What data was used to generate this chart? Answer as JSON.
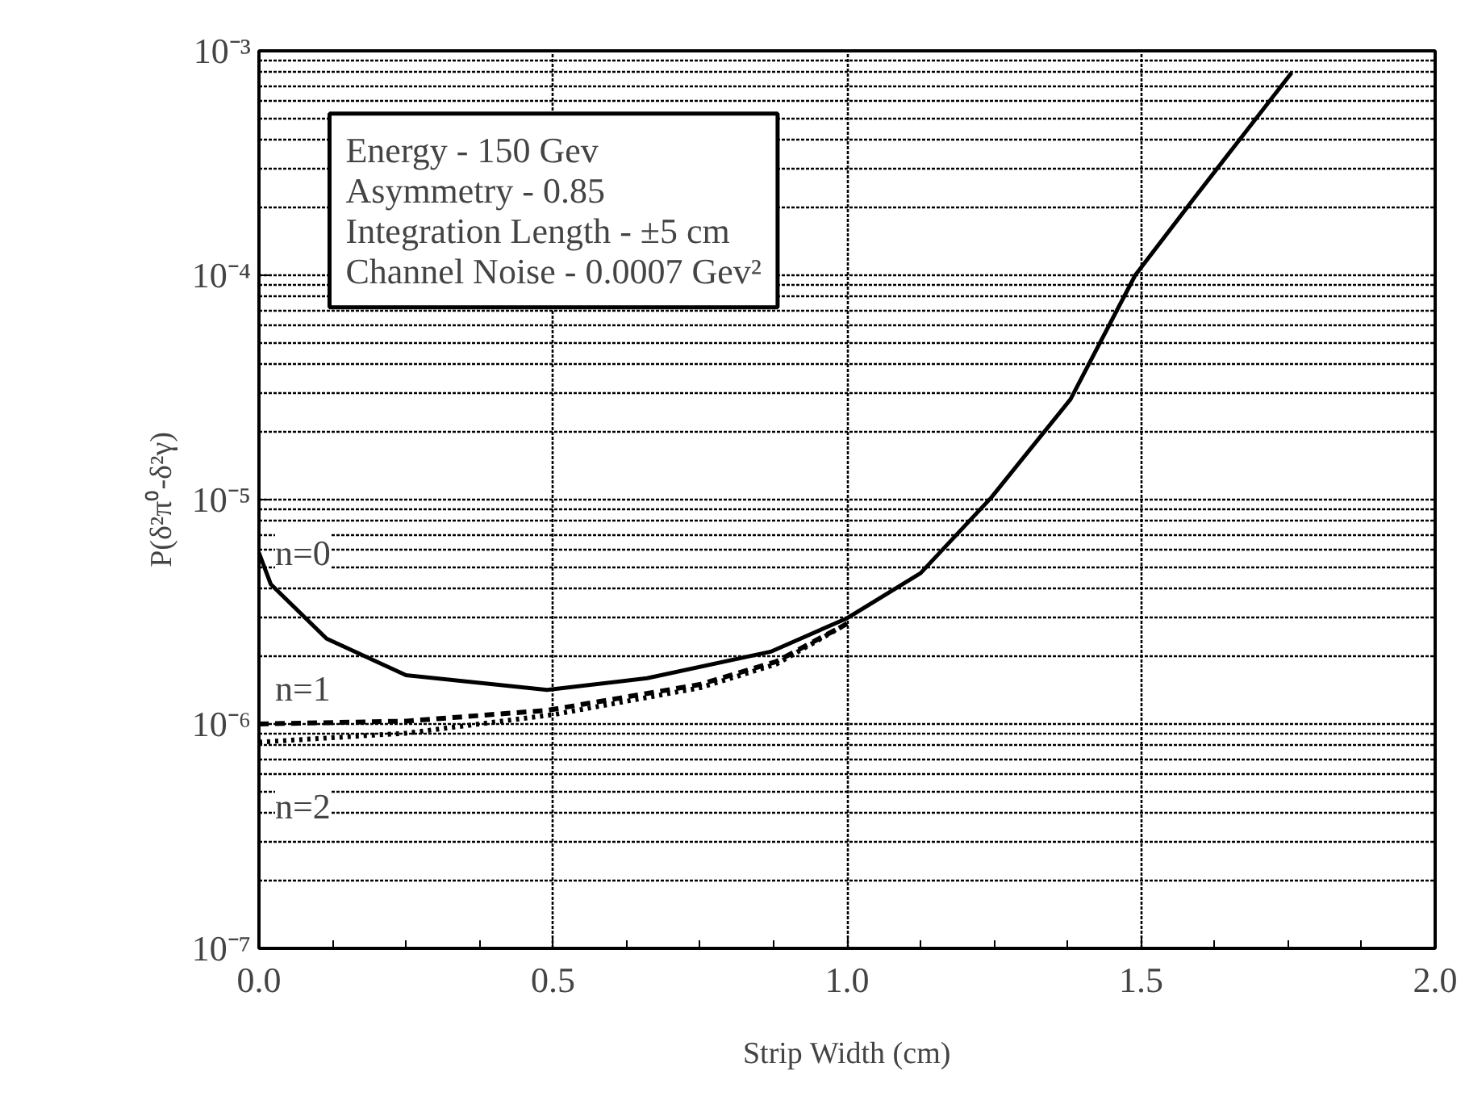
{
  "chart_data": {
    "type": "line",
    "xlabel": "Strip Width (cm)",
    "ylabel": "P(δ²π⁰-δ²γ)",
    "log": "y",
    "grid": true,
    "marker": "none",
    "xlim": [
      0,
      2
    ],
    "ylim": [
      1e-07,
      0.001
    ],
    "xticks": [
      {
        "value": 0,
        "label": "0.0"
      },
      {
        "value": 0.125,
        "label": null
      },
      {
        "value": 0.25,
        "label": null
      },
      {
        "value": 0.375,
        "label": null
      },
      {
        "value": 0.5,
        "label": "0.5"
      },
      {
        "value": 0.625,
        "label": null
      },
      {
        "value": 0.75,
        "label": null
      },
      {
        "value": 0.875,
        "label": null
      },
      {
        "value": 1,
        "label": "1.0"
      },
      {
        "value": 1.125,
        "label": null
      },
      {
        "value": 1.25,
        "label": null
      },
      {
        "value": 1.375,
        "label": null
      },
      {
        "value": 1.5,
        "label": "1.5"
      },
      {
        "value": 1.625,
        "label": null
      },
      {
        "value": 1.75,
        "label": null
      },
      {
        "value": 1.875,
        "label": null
      },
      {
        "value": 2,
        "label": "2.0"
      }
    ],
    "yticks": [
      {
        "value": 1e-07,
        "label": "10⁻⁷"
      },
      {
        "value": 1e-06,
        "label": "10⁻⁶"
      },
      {
        "value": 1e-05,
        "label": "10⁻⁵"
      },
      {
        "value": 0.0001,
        "label": "10⁻⁴"
      },
      {
        "value": 0.001,
        "label": "10⁻³"
      }
    ],
    "annotations": [
      "Energy - 150 Gev",
      "Asymmetry - 0.85",
      "Integration Length - ±5 cm",
      "Channel Noise - 0.0007 Gev²"
    ],
    "series": [
      {
        "name": "n=0",
        "color": "#000000",
        "line_style": "solid",
        "x": [
          0,
          0.02,
          0.115,
          0.25,
          0.49,
          0.66,
          0.87,
          1.0,
          1.125,
          1.245,
          1.38,
          1.49,
          1.59,
          1.756
        ],
        "values": [
          5.8e-06,
          4.2e-06,
          2.4e-06,
          1.65e-06,
          1.42e-06,
          1.6e-06,
          2.1e-06,
          2.96e-06,
          4.7e-06,
          1.02e-05,
          2.8e-05,
          0.0001,
          0.00022,
          0.0008
        ]
      },
      {
        "name": "n=1",
        "color": "#000000",
        "line_style": "dashed",
        "x": [
          0,
          0.25,
          0.49,
          0.75,
          0.88,
          1.0
        ],
        "values": [
          1e-06,
          1.03e-06,
          1.15e-06,
          1.5e-06,
          1.9e-06,
          2.8e-06
        ]
      },
      {
        "name": "n=2",
        "color": "#000000",
        "line_style": "dotted",
        "x": [
          0,
          0.25,
          0.5,
          0.75,
          0.88,
          1.0
        ],
        "values": [
          8.3e-07,
          9.1e-07,
          1.1e-06,
          1.45e-06,
          1.85e-06,
          2.8e-06
        ]
      }
    ]
  }
}
